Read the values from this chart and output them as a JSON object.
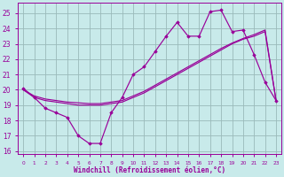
{
  "background_color": "#c8eaea",
  "grid_color": "#9ababa",
  "line_color": "#990099",
  "xlabel": "Windchill (Refroidissement éolien,°C)",
  "x_hours": [
    0,
    1,
    2,
    3,
    4,
    5,
    6,
    7,
    8,
    9,
    10,
    11,
    12,
    13,
    14,
    15,
    16,
    17,
    18,
    19,
    20,
    21,
    22,
    23
  ],
  "temp_curve": [
    20.1,
    19.5,
    18.8,
    18.5,
    18.2,
    17.0,
    16.5,
    16.5,
    18.5,
    19.5,
    21.0,
    21.5,
    22.5,
    23.5,
    24.4,
    23.5,
    23.5,
    25.1,
    25.2,
    23.8,
    23.9,
    22.3,
    20.5,
    19.3
  ],
  "line1": [
    20.0,
    19.5,
    19.3,
    19.2,
    19.1,
    19.0,
    19.0,
    19.0,
    19.1,
    19.2,
    19.5,
    19.8,
    20.2,
    20.6,
    21.0,
    21.4,
    21.8,
    22.2,
    22.6,
    23.0,
    23.3,
    23.5,
    23.8,
    19.3
  ],
  "line2": [
    20.0,
    19.6,
    19.4,
    19.3,
    19.2,
    19.15,
    19.1,
    19.1,
    19.2,
    19.3,
    19.6,
    19.9,
    20.3,
    20.7,
    21.1,
    21.5,
    21.9,
    22.3,
    22.7,
    23.05,
    23.35,
    23.6,
    23.9,
    19.3
  ],
  "ylim": [
    15.8,
    25.7
  ],
  "yticks": [
    16,
    17,
    18,
    19,
    20,
    21,
    22,
    23,
    24,
    25
  ],
  "xlim": [
    -0.5,
    23.5
  ]
}
